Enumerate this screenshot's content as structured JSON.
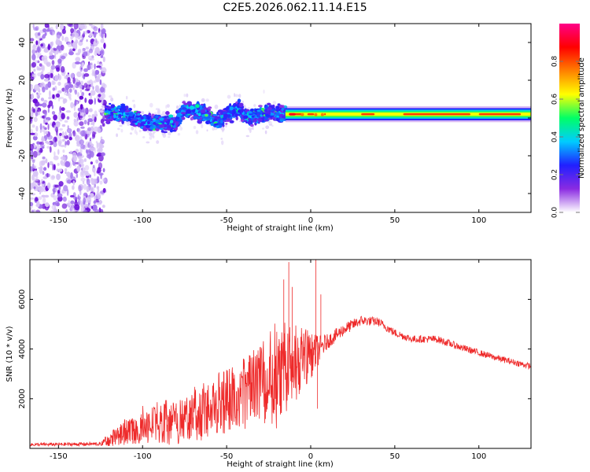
{
  "title": "C2E5.2026.062.11.14.E15",
  "colors": {
    "snr_line": "#ee2a2a",
    "frame": "#000000",
    "background": "#ffffff"
  },
  "chart_data": [
    {
      "type": "heatmap",
      "name": "spectrogram",
      "xlabel": "Height of straight line (km)",
      "ylabel": "Frequency (Hz)",
      "xlim": [
        -167,
        131
      ],
      "ylim": [
        -50,
        50
      ],
      "xticks": [
        -150,
        -100,
        -50,
        0,
        50,
        100
      ],
      "xtick_labels": [
        "-150",
        "-100",
        "-50",
        "0",
        "50",
        "100"
      ],
      "yticks": [
        -40,
        -20,
        0,
        20,
        40
      ],
      "ytick_labels": [
        "-40",
        "-20",
        "0",
        "20",
        "40"
      ],
      "colorbar": {
        "label": "Normalized spectral amplitude",
        "range": [
          0,
          1
        ],
        "ticks": [
          0.0,
          0.2,
          0.4,
          0.6,
          0.8
        ],
        "tick_labels": [
          "0.0",
          "0.2",
          "0.4",
          "0.6",
          "0.8"
        ],
        "colormap": [
          "#ffffff",
          "#8a2be2",
          "#2020ff",
          "#00ccff",
          "#00ff66",
          "#ffff00",
          "#ff8000",
          "#ff0000",
          "#ff0088"
        ]
      },
      "regions": [
        {
          "x_range": [
            -167,
            -122
          ],
          "freq_spread_hz": 50,
          "amplitude": 0.08,
          "description": "noise"
        },
        {
          "x_range": [
            -122,
            -15
          ],
          "freq_spread_hz": 6,
          "amplitude": 0.3
        },
        {
          "x_range": [
            -15,
            131
          ],
          "freq_spread_hz": 1.5,
          "amplitude": 0.75
        }
      ],
      "center_frequency_track": [
        {
          "x": -125,
          "f": 3
        },
        {
          "x": -110,
          "f": 2
        },
        {
          "x": -100,
          "f": -2
        },
        {
          "x": -90,
          "f": -3
        },
        {
          "x": -80,
          "f": -2
        },
        {
          "x": -75,
          "f": 5
        },
        {
          "x": -65,
          "f": 3
        },
        {
          "x": -55,
          "f": -2
        },
        {
          "x": -45,
          "f": 5
        },
        {
          "x": -35,
          "f": 0
        },
        {
          "x": -25,
          "f": 3
        },
        {
          "x": -15,
          "f": 2
        },
        {
          "x": 0,
          "f": 2
        },
        {
          "x": 131,
          "f": 2
        }
      ]
    },
    {
      "type": "line",
      "name": "snr",
      "xlabel": "Height of straight line (km)",
      "ylabel": "SNR (10 * v/v)",
      "xlim": [
        -167,
        131
      ],
      "ylim": [
        0,
        7600
      ],
      "xticks": [
        -150,
        -100,
        -50,
        0,
        50,
        100
      ],
      "xtick_labels": [
        "-150",
        "-100",
        "-50",
        "0",
        "50",
        "100"
      ],
      "yticks": [
        2000,
        4000,
        6000
      ],
      "ytick_labels": [
        "2000",
        "4000",
        "6000"
      ],
      "envelope": [
        {
          "x": -167,
          "mean": 150,
          "noise": 60
        },
        {
          "x": -125,
          "mean": 180,
          "noise": 80
        },
        {
          "x": -115,
          "mean": 500,
          "noise": 400
        },
        {
          "x": -100,
          "mean": 900,
          "noise": 700
        },
        {
          "x": -80,
          "mean": 1000,
          "noise": 900
        },
        {
          "x": -60,
          "mean": 1500,
          "noise": 1100
        },
        {
          "x": -45,
          "mean": 2000,
          "noise": 1300
        },
        {
          "x": -30,
          "mean": 2500,
          "noise": 1600
        },
        {
          "x": -20,
          "mean": 3000,
          "noise": 2200
        },
        {
          "x": -10,
          "mean": 3300,
          "noise": 1500
        },
        {
          "x": 0,
          "mean": 3700,
          "noise": 900
        },
        {
          "x": 10,
          "mean": 4300,
          "noise": 300
        },
        {
          "x": 20,
          "mean": 4800,
          "noise": 250
        },
        {
          "x": 30,
          "mean": 5150,
          "noise": 200
        },
        {
          "x": 40,
          "mean": 5100,
          "noise": 180
        },
        {
          "x": 50,
          "mean": 4650,
          "noise": 160
        },
        {
          "x": 60,
          "mean": 4400,
          "noise": 150
        },
        {
          "x": 75,
          "mean": 4400,
          "noise": 150
        },
        {
          "x": 90,
          "mean": 4050,
          "noise": 140
        },
        {
          "x": 110,
          "mean": 3650,
          "noise": 130
        },
        {
          "x": 131,
          "mean": 3300,
          "noise": 120
        }
      ],
      "spikes": [
        {
          "x": -16,
          "y": 6800
        },
        {
          "x": -13,
          "y": 7500
        },
        {
          "x": -11,
          "y": 6500
        },
        {
          "x": 3,
          "y": 7600
        },
        {
          "x": 4,
          "y": 1600
        },
        {
          "x": 6,
          "y": 6200
        }
      ]
    }
  ]
}
